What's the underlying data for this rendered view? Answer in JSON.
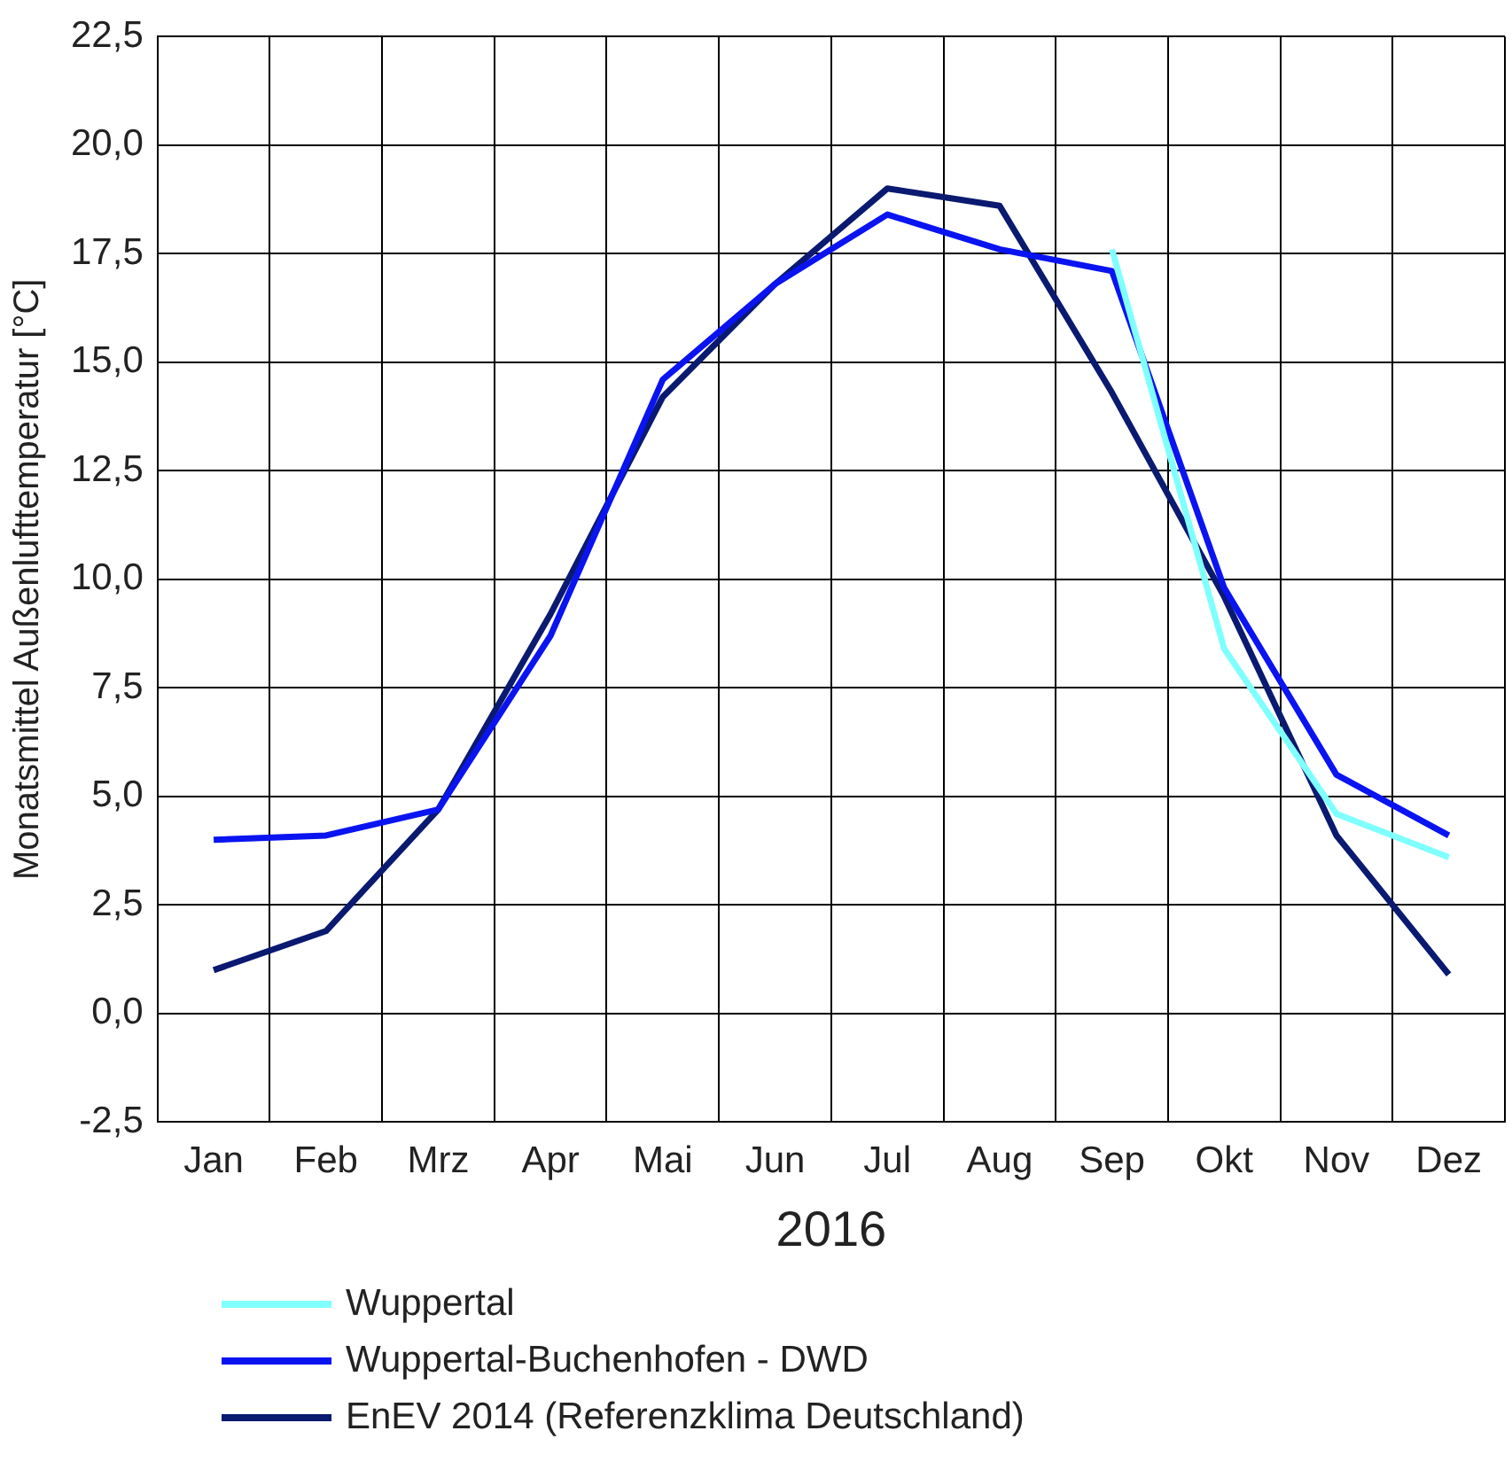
{
  "chart_data": {
    "type": "line",
    "xlabel": "2016",
    "ylabel": "Monatsmittel Außenlufttemperatur [°C]",
    "categories": [
      "Jan",
      "Feb",
      "Mrz",
      "Apr",
      "Mai",
      "Jun",
      "Jul",
      "Aug",
      "Sep",
      "Okt",
      "Nov",
      "Dez"
    ],
    "series": [
      {
        "name": "Wuppertal",
        "color": "#80ffff",
        "values": [
          null,
          null,
          null,
          null,
          null,
          null,
          null,
          null,
          17.6,
          8.4,
          4.6,
          3.6
        ]
      },
      {
        "name": "Wuppertal-Buchenhofen - DWD",
        "color": "#0a14f0",
        "values": [
          4.0,
          4.1,
          4.7,
          8.7,
          14.6,
          16.8,
          18.4,
          17.6,
          17.1,
          9.8,
          5.5,
          4.1
        ]
      },
      {
        "name": "EnEV 2014 (Referenzklima Deutschland)",
        "color": "#0a1a70",
        "values": [
          1.0,
          1.9,
          4.7,
          9.2,
          14.2,
          16.8,
          19.0,
          18.6,
          14.3,
          9.6,
          4.1,
          0.9
        ]
      }
    ],
    "ylim": [
      -2.5,
      22.5
    ],
    "yticks": [
      {
        "value": -2.5,
        "label": "-2,5"
      },
      {
        "value": 0,
        "label": "0,0"
      },
      {
        "value": 2.5,
        "label": "2,5"
      },
      {
        "value": 5,
        "label": "5,0"
      },
      {
        "value": 7.5,
        "label": "7,5"
      },
      {
        "value": 10,
        "label": "10,0"
      },
      {
        "value": 12.5,
        "label": "12,5"
      },
      {
        "value": 15,
        "label": "15,0"
      },
      {
        "value": 17.5,
        "label": "17,5"
      },
      {
        "value": 20,
        "label": "20,0"
      },
      {
        "value": 22.5,
        "label": "22,5"
      }
    ],
    "grid": true,
    "legend": "bottom",
    "marker": "none",
    "line_style": "solid"
  }
}
